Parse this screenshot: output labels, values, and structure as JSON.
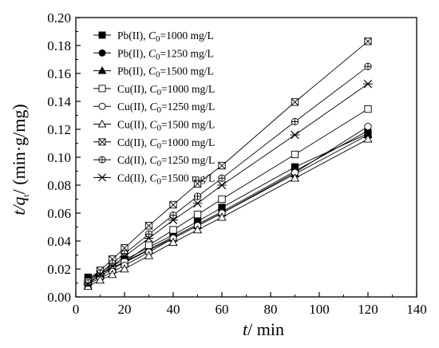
{
  "chart_data": {
    "type": "line",
    "title": "",
    "xlabel": {
      "var": "t",
      "unit": "/ min"
    },
    "ylabel": {
      "var": "t/q",
      "sub": "t",
      "unit": "/ (min·g/mg)"
    },
    "xlim": [
      0,
      140
    ],
    "ylim": [
      0,
      0.2
    ],
    "xticks": [
      "0",
      "20",
      "40",
      "60",
      "80",
      "100",
      "120",
      "140"
    ],
    "yticks": [
      "0.00",
      "0.02",
      "0.04",
      "0.06",
      "0.08",
      "0.10",
      "0.12",
      "0.14",
      "0.16",
      "0.18",
      "0.20"
    ],
    "grid": false,
    "legend_position": "top-left",
    "x": [
      5,
      10,
      15,
      20,
      30,
      40,
      50,
      60,
      90,
      120
    ],
    "series": [
      {
        "name": "Pb(II), C0=1000 mg/L",
        "label_pre": "Pb(II), ",
        "label_var": "C",
        "label_sub": "0",
        "label_post": "=1000 mg/L",
        "marker": "square-filled",
        "values": [
          0.014,
          0.018,
          0.0225,
          0.0265,
          0.0355,
          0.0445,
          0.054,
          0.064,
          0.093,
          0.117
        ]
      },
      {
        "name": "Pb(II), C0=1250 mg/L",
        "label_pre": "Pb(II), ",
        "label_var": "C",
        "label_sub": "0",
        "label_post": "=1250 mg/L",
        "marker": "circle-filled",
        "values": [
          0.013,
          0.017,
          0.021,
          0.025,
          0.034,
          0.043,
          0.052,
          0.061,
          0.09,
          0.119
        ]
      },
      {
        "name": "Pb(II), C0=1500 mg/L",
        "label_pre": "Pb(II), ",
        "label_var": "C",
        "label_sub": "0",
        "label_post": "=1500 mg/L",
        "marker": "triangle-filled",
        "values": [
          0.0125,
          0.0165,
          0.0205,
          0.0245,
          0.0335,
          0.042,
          0.051,
          0.06,
          0.088,
          0.116
        ]
      },
      {
        "name": "Cu(II), C0=1000 mg/L",
        "label_pre": "Cu(II), ",
        "label_var": "C",
        "label_sub": "0",
        "label_post": "=1000 mg/L",
        "marker": "square-open",
        "values": [
          0.01,
          0.015,
          0.02,
          0.025,
          0.037,
          0.048,
          0.059,
          0.07,
          0.102,
          0.1345
        ]
      },
      {
        "name": "Cu(II), C0=1250 mg/L",
        "label_pre": "Cu(II), ",
        "label_var": "C",
        "label_sub": "0",
        "label_post": "=1250 mg/L",
        "marker": "circle-open",
        "values": [
          0.009,
          0.0135,
          0.018,
          0.0225,
          0.032,
          0.042,
          0.051,
          0.06,
          0.089,
          0.122
        ]
      },
      {
        "name": "Cu(II), C0=1500 mg/L",
        "label_pre": "Cu(II), ",
        "label_var": "C",
        "label_sub": "0",
        "label_post": "=1500 mg/L",
        "marker": "triangle-open",
        "values": [
          0.0075,
          0.012,
          0.016,
          0.02,
          0.0295,
          0.039,
          0.048,
          0.057,
          0.085,
          0.113
        ]
      },
      {
        "name": "Cd(II), C0=1000 mg/L",
        "label_pre": "Cd(II), ",
        "label_var": "C",
        "label_sub": "0",
        "label_post": "=1000 mg/L",
        "marker": "square-cross",
        "values": [
          0.011,
          0.019,
          0.027,
          0.035,
          0.051,
          0.066,
          0.081,
          0.094,
          0.1395,
          0.183
        ]
      },
      {
        "name": "Cd(II), C0=1250 mg/L",
        "label_pre": "Cd(II), ",
        "label_var": "C",
        "label_sub": "0",
        "label_post": "=1250 mg/L",
        "marker": "circle-plus",
        "values": [
          0.01,
          0.017,
          0.024,
          0.031,
          0.045,
          0.0585,
          0.072,
          0.085,
          0.1255,
          0.165
        ]
      },
      {
        "name": "Cd(II), C0=1500 mg/L",
        "label_pre": "Cd(II), ",
        "label_var": "C",
        "label_sub": "0",
        "label_post": "=1500 mg/L",
        "marker": "star",
        "values": [
          0.009,
          0.016,
          0.022,
          0.029,
          0.042,
          0.055,
          0.067,
          0.08,
          0.116,
          0.1525
        ]
      }
    ]
  }
}
